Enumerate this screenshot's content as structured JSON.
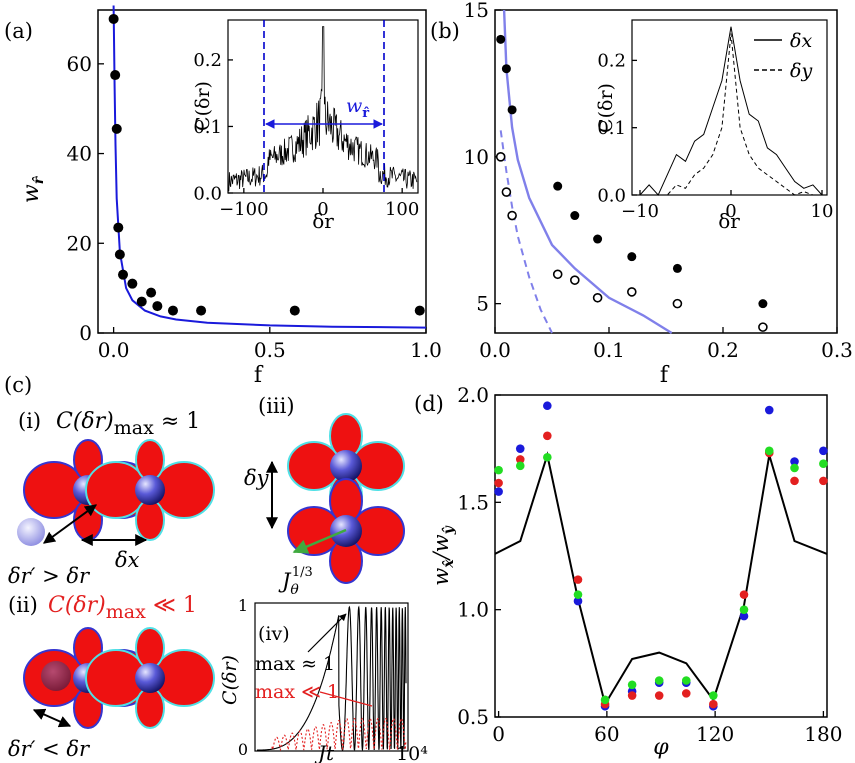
{
  "panel_labels": {
    "a": "(a)",
    "b": "(b)",
    "c": "(c)",
    "d": "(d)"
  },
  "panel_c": {
    "items": {
      "i": "(i)",
      "ii": "(ii)",
      "iii": "(iii)",
      "iv": "(iv)"
    },
    "i_text": "C(δr)max ≈ 1",
    "ii_text": "C(δr)max ≪ 1",
    "dr_greater": "δr′ > δr",
    "dr_less": "δr′ < δr",
    "dx": "δx",
    "dy": "δy",
    "j_theta": "Jθ1/3",
    "iv_max1": "max ≈ 1",
    "iv_max2": "max ≪ 1",
    "iv_ylabel": "C(δr)",
    "iv_xlabel": "Jt",
    "iv_xtick_end": "10⁴",
    "iv_ytick_0": "0",
    "iv_ytick_1": "1"
  },
  "colors": {
    "blue": "#1a1adb",
    "lightblue": "#8080ea",
    "red": "#e32020",
    "green": "#22dd22",
    "navy": "#0000cc",
    "cyan": "#4fe0e6",
    "petal": "#ee1111"
  },
  "chart_data": [
    {
      "id": "a",
      "type": "scatter",
      "xlabel": "f",
      "ylabel": "w_r̂",
      "xlim": [
        -0.05,
        1.0
      ],
      "ylim": [
        0,
        72
      ],
      "xticks": [
        "0.0",
        "0.5",
        "1.0"
      ],
      "yticks": [
        "0",
        "20",
        "40",
        "60"
      ],
      "points": {
        "x": [
          0.0,
          0.005,
          0.01,
          0.015,
          0.02,
          0.03,
          0.06,
          0.09,
          0.12,
          0.14,
          0.19,
          0.28,
          0.58,
          0.98
        ],
        "y": [
          70,
          57.5,
          45.5,
          23.5,
          17.5,
          13,
          11,
          7,
          9,
          6,
          5,
          5,
          5,
          5
        ]
      },
      "curve": {
        "name": "fit",
        "x": [
          0.0,
          0.003,
          0.006,
          0.01,
          0.02,
          0.04,
          0.06,
          0.1,
          0.15,
          0.2,
          0.3,
          0.5,
          0.7,
          1.0
        ],
        "y": [
          74,
          55,
          42,
          30,
          18,
          10,
          7.3,
          5,
          3.7,
          3.0,
          2.3,
          1.7,
          1.4,
          1.2
        ]
      },
      "inset": {
        "type": "line",
        "xlabel": "δr",
        "ylabel": "C(δr)",
        "xlim": [
          -120,
          120
        ],
        "ylim": [
          0,
          0.26
        ],
        "xticks": [
          "−100",
          "0",
          "100"
        ],
        "yticks": [
          "0.0",
          "0.1",
          "0.2"
        ],
        "annotation": "w_r̂",
        "vlines": [
          -70,
          70
        ]
      }
    },
    {
      "id": "b",
      "type": "scatter",
      "xlabel": "f",
      "ylim": [
        4,
        15
      ],
      "xlim": [
        0,
        0.3
      ],
      "xticks": [
        "0.0",
        "0.1",
        "0.2",
        "0.3"
      ],
      "yticks": [
        "5",
        "10",
        "15"
      ],
      "series": [
        {
          "marker": "filled",
          "x": [
            0.005,
            0.01,
            0.015,
            0.055,
            0.07,
            0.09,
            0.12,
            0.16,
            0.235
          ],
          "y": [
            14,
            13,
            11.6,
            9,
            8,
            7.2,
            6.6,
            6.2,
            5
          ]
        },
        {
          "marker": "open",
          "x": [
            0.005,
            0.01,
            0.015,
            0.055,
            0.07,
            0.09,
            0.12,
            0.16,
            0.235
          ],
          "y": [
            10,
            8.8,
            8,
            6,
            5.8,
            5.2,
            5.4,
            5,
            4.2
          ]
        }
      ],
      "curves": [
        {
          "style": "solid",
          "x": [
            0.008,
            0.01,
            0.015,
            0.02,
            0.03,
            0.05,
            0.07,
            0.1,
            0.13,
            0.155
          ],
          "y": [
            15,
            13,
            11,
            9.9,
            8.6,
            7.0,
            6.2,
            5.2,
            4.6,
            4.0
          ]
        },
        {
          "style": "dashed",
          "x": [
            0.005,
            0.01,
            0.015,
            0.02,
            0.03,
            0.04,
            0.05
          ],
          "y": [
            10.9,
            9.5,
            8.3,
            7.3,
            5.9,
            4.8,
            4.0
          ]
        }
      ],
      "inset": {
        "type": "line",
        "xlabel": "δr",
        "ylabel": "C(δr)",
        "xlim": [
          -10,
          10
        ],
        "ylim": [
          0,
          0.26
        ],
        "xticks": [
          "−10",
          "0",
          "10"
        ],
        "yticks": [
          "0.0",
          "0.1",
          "0.2"
        ],
        "legend": [
          {
            "style": "solid",
            "label": "δx"
          },
          {
            "style": "dashed",
            "label": "δy"
          }
        ]
      }
    },
    {
      "id": "d",
      "type": "scatter",
      "xlabel": "φ",
      "ylabel": "w_x̂ / w_ŷ",
      "xlim": [
        -2,
        182
      ],
      "ylim": [
        0.5,
        2.0
      ],
      "xticks": [
        "0",
        "60",
        "120",
        "180"
      ],
      "yticks": [
        "0.5",
        "1.0",
        "1.5",
        "2.0"
      ],
      "line": {
        "x": [
          -2,
          12,
          27,
          44,
          59,
          74,
          89,
          104,
          119,
          136,
          150,
          164,
          182
        ],
        "y": [
          1.26,
          1.32,
          1.72,
          1.05,
          0.56,
          0.77,
          0.8,
          0.75,
          0.58,
          1.02,
          1.72,
          1.32,
          1.26
        ]
      },
      "series": [
        {
          "color": "blue",
          "x": [
            0,
            12,
            27,
            44,
            59,
            74,
            89,
            104,
            119,
            136,
            150,
            164,
            180
          ],
          "y": [
            1.55,
            1.75,
            1.95,
            1.04,
            0.55,
            0.62,
            0.66,
            0.66,
            0.55,
            0.97,
            1.93,
            1.69,
            1.74
          ]
        },
        {
          "color": "red",
          "x": [
            0,
            12,
            27,
            44,
            59,
            74,
            89,
            104,
            119,
            136,
            150,
            164,
            180
          ],
          "y": [
            1.59,
            1.7,
            1.81,
            1.14,
            0.56,
            0.6,
            0.6,
            0.61,
            0.56,
            1.07,
            1.73,
            1.6,
            1.6
          ]
        },
        {
          "color": "green",
          "x": [
            0,
            12,
            27,
            44,
            59,
            74,
            89,
            104,
            119,
            136,
            150,
            164,
            180
          ],
          "y": [
            1.65,
            1.67,
            1.71,
            1.07,
            0.58,
            0.65,
            0.67,
            0.67,
            0.6,
            1.0,
            1.74,
            1.66,
            1.68
          ]
        }
      ]
    }
  ]
}
